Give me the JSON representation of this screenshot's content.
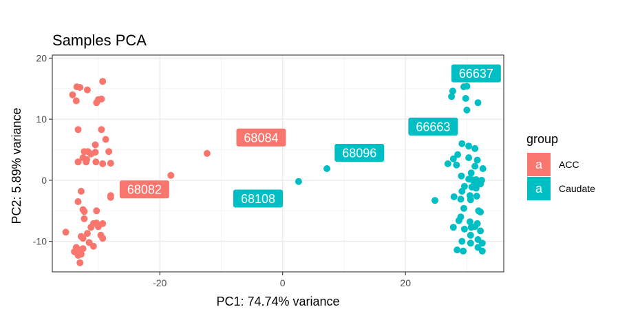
{
  "chart_data": {
    "type": "scatter",
    "title": "Samples PCA",
    "xlabel": "PC1: 74.74% variance",
    "ylabel": "PC2: 5.89% variance",
    "xlim": [
      -37.5,
      36
    ],
    "ylim": [
      -15,
      20.5
    ],
    "xticks": [
      -20,
      0,
      20
    ],
    "yticks": [
      -10,
      0,
      10,
      20
    ],
    "x_tick_labels": [
      "-20",
      "0",
      "20"
    ],
    "y_tick_labels": [
      "-10",
      "0",
      "10",
      "20"
    ],
    "grid": true,
    "legend_position": "right",
    "legend": {
      "title": "group",
      "key_glyph": "a",
      "items": [
        {
          "label": "ACC",
          "color": "#F8766D"
        },
        {
          "label": "Caudate",
          "color": "#00BFC4"
        }
      ]
    },
    "series": [
      {
        "name": "ACC",
        "color": "#F8766D",
        "points": [
          [
            -33.5,
            15.3
          ],
          [
            -33,
            15.2
          ],
          [
            -31.8,
            14.8
          ],
          [
            -29.3,
            16.2
          ],
          [
            -34.2,
            14
          ],
          [
            -33.6,
            13
          ],
          [
            -30.3,
            12.7
          ],
          [
            -30,
            13.2
          ],
          [
            -29.5,
            13.3
          ],
          [
            -33.3,
            8.3
          ],
          [
            -29.5,
            8.3
          ],
          [
            -28.8,
            6.7
          ],
          [
            -30.5,
            5.8
          ],
          [
            -32.3,
            4.7
          ],
          [
            -31.7,
            4.7
          ],
          [
            -31.2,
            4.3
          ],
          [
            -30.5,
            4.6
          ],
          [
            -28.3,
            4.7
          ],
          [
            -32.5,
            3.7
          ],
          [
            -31.9,
            3.4
          ],
          [
            -33.3,
            3
          ],
          [
            -32,
            3
          ],
          [
            -30.4,
            3
          ],
          [
            -29.3,
            2.7
          ],
          [
            -28,
            2.8
          ],
          [
            -32.8,
            -1.8
          ],
          [
            -28,
            -2.5
          ],
          [
            -28,
            -2.8
          ],
          [
            -33.3,
            -3.5
          ],
          [
            -32.5,
            -4.8
          ],
          [
            -32.3,
            -5.1
          ],
          [
            -30.3,
            -5
          ],
          [
            -32.3,
            -6.3
          ],
          [
            -30.8,
            -7.1
          ],
          [
            -30.3,
            -7
          ],
          [
            -29.3,
            -7.1
          ],
          [
            -30,
            -7.6
          ],
          [
            -31.2,
            -7.7
          ],
          [
            -35.3,
            -8.5
          ],
          [
            -31.8,
            -8.7
          ],
          [
            -29.6,
            -9
          ],
          [
            -32.8,
            -9.2
          ],
          [
            -32.5,
            -9.5
          ],
          [
            -29.3,
            -9.5
          ],
          [
            -31.5,
            -10.2
          ],
          [
            -30.8,
            -10.8
          ],
          [
            -33.6,
            -11
          ],
          [
            -33.3,
            -11.3
          ],
          [
            -32.5,
            -11.2
          ],
          [
            -33.9,
            -11.7
          ],
          [
            -33.3,
            -12.3
          ],
          [
            -32.8,
            -12.1
          ],
          [
            -33,
            -13.5
          ],
          [
            -18.2,
            0.8
          ],
          [
            -12.3,
            4.4
          ]
        ]
      },
      {
        "name": "Caudate",
        "color": "#00BFC4",
        "points": [
          [
            27.7,
            14.6
          ],
          [
            29.5,
            15.3
          ],
          [
            30,
            15.4
          ],
          [
            27.5,
            13.7
          ],
          [
            29.8,
            13.4
          ],
          [
            31.8,
            12.7
          ],
          [
            30,
            11.5
          ],
          [
            27.6,
            9
          ],
          [
            29.2,
            6
          ],
          [
            30.3,
            5.6
          ],
          [
            31.3,
            5.2
          ],
          [
            28.5,
            4.2
          ],
          [
            30.3,
            3.7
          ],
          [
            31.7,
            3.3
          ],
          [
            27.8,
            3.5
          ],
          [
            26.9,
            2.7
          ],
          [
            28.3,
            2.5
          ],
          [
            31.3,
            2.3
          ],
          [
            32.6,
            1.9
          ],
          [
            30.7,
            1.2
          ],
          [
            29.1,
            0.7
          ],
          [
            30.3,
            0.2
          ],
          [
            30.8,
            0.1
          ],
          [
            31.5,
            0.1
          ],
          [
            32.4,
            0
          ],
          [
            31.2,
            -0.4
          ],
          [
            32.2,
            -0.6
          ],
          [
            29.6,
            -1
          ],
          [
            30.8,
            -1.1
          ],
          [
            31.5,
            -1.3
          ],
          [
            29.2,
            -1.8
          ],
          [
            31.6,
            -2.6
          ],
          [
            27.9,
            -2.7
          ],
          [
            29,
            -3.1
          ],
          [
            30.5,
            -2.5
          ],
          [
            30.6,
            -3.2
          ],
          [
            24.8,
            -3.3
          ],
          [
            29.5,
            -4.6
          ],
          [
            31.9,
            -5
          ],
          [
            32.2,
            -5.2
          ],
          [
            29,
            -6
          ],
          [
            28.7,
            -6.6
          ],
          [
            30.5,
            -6.8
          ],
          [
            31.7,
            -7.1
          ],
          [
            30.7,
            -7.7
          ],
          [
            31.3,
            -7.6
          ],
          [
            27.8,
            -7.7
          ],
          [
            29.6,
            -8
          ],
          [
            32.2,
            -8.3
          ],
          [
            30.6,
            -9
          ],
          [
            31.8,
            -9.7
          ],
          [
            29.2,
            -10
          ],
          [
            30.6,
            -10.3
          ],
          [
            32.5,
            -10.3
          ],
          [
            31.8,
            -11
          ],
          [
            28.4,
            -11.4
          ],
          [
            29.4,
            -11.6
          ],
          [
            32.5,
            -11.6
          ],
          [
            7.2,
            1.9
          ],
          [
            2.6,
            -0.2
          ]
        ]
      }
    ],
    "annotations": [
      {
        "text": "68084",
        "x": -3.5,
        "y": 7,
        "color": "#F8766D"
      },
      {
        "text": "68082",
        "x": -22.5,
        "y": -1.5,
        "color": "#F8766D"
      },
      {
        "text": "68096",
        "x": 12.5,
        "y": 4.5,
        "color": "#00BFC4"
      },
      {
        "text": "68108",
        "x": -4,
        "y": -3,
        "color": "#00BFC4"
      },
      {
        "text": "66637",
        "x": 31.5,
        "y": 17.5,
        "color": "#00BFC4"
      },
      {
        "text": "66663",
        "x": 24.5,
        "y": 8.8,
        "color": "#00BFC4"
      }
    ]
  }
}
